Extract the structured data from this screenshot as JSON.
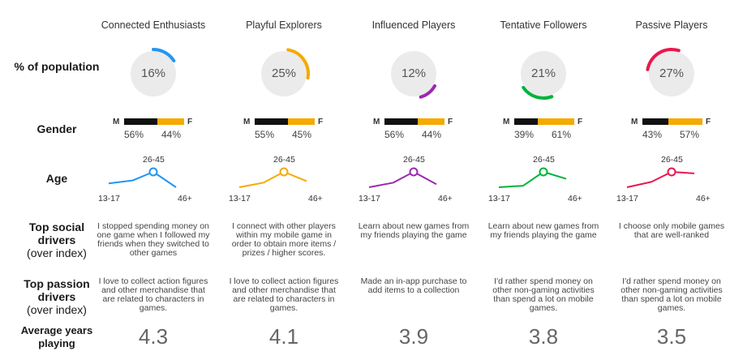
{
  "row_labels": {
    "population": "% of population",
    "gender": "Gender",
    "age": "Age",
    "social_title": "Top social drivers",
    "social_sub": "(over index)",
    "passion_title": "Top passion drivers",
    "passion_sub": "(over index)",
    "years": "Average years playing"
  },
  "gender_letters": {
    "m": "M",
    "f": "F"
  },
  "age_axis": {
    "low": "13-17",
    "mid": "26-45",
    "high": "46+"
  },
  "colors": {
    "male_bar": "#111111",
    "female_bar": "#f5a900",
    "circle_bg": "#ebebeb",
    "age_trend_stroke_width": "2"
  },
  "chart_data": {
    "type": "table",
    "segments": [
      {
        "name": "Connected Enthusiasts",
        "color": "#2196f3",
        "population_pct": 16,
        "population_label": "16%",
        "male_pct": 56,
        "male_label": "56%",
        "female_pct": 44,
        "female_label": "44%",
        "age_index": [
          0.25,
          0.45,
          1.0,
          0.0
        ],
        "social_driver": "I stopped spending money on one game when I followed my friends when they switched to other games",
        "passion_driver": "I love to collect action figures and other merchandise that are related to characters in games.",
        "avg_years": 4.3,
        "avg_years_label": "4.3"
      },
      {
        "name": "Playful Explorers",
        "color": "#f5a900",
        "population_pct": 25,
        "population_label": "25%",
        "male_pct": 55,
        "male_label": "55%",
        "female_pct": 45,
        "female_label": "45%",
        "age_index": [
          0.0,
          0.3,
          1.0,
          0.4
        ],
        "social_driver": "I connect with other players within my mobile game in order to obtain more items / prizes / higher scores.",
        "passion_driver": "I love to collect action figures and other merchandise that are related to characters in games.",
        "avg_years": 4.1,
        "avg_years_label": "4.1"
      },
      {
        "name": "Influenced Players",
        "color": "#9c27b0",
        "population_pct": 12,
        "population_label": "12%",
        "male_pct": 56,
        "male_label": "56%",
        "female_pct": 44,
        "female_label": "44%",
        "age_index": [
          0.0,
          0.3,
          1.0,
          0.2
        ],
        "social_driver": "Learn about new games from my friends playing the game",
        "passion_driver": "Made an in-app purchase to add items to a collection",
        "avg_years": 3.9,
        "avg_years_label": "3.9"
      },
      {
        "name": "Tentative Followers",
        "color": "#00b33c",
        "population_pct": 21,
        "population_label": "21%",
        "male_pct": 39,
        "male_label": "39%",
        "female_pct": 61,
        "female_label": "61%",
        "age_index": [
          0.0,
          0.1,
          1.0,
          0.55
        ],
        "social_driver": "Learn about new games from my friends playing the game",
        "passion_driver": "I'd rather spend money on other non-gaming activities than spend a lot on mobile games.",
        "avg_years": 3.8,
        "avg_years_label": "3.8"
      },
      {
        "name": "Passive Players",
        "color": "#e8174f",
        "population_pct": 27,
        "population_label": "27%",
        "male_pct": 43,
        "male_label": "43%",
        "female_pct": 57,
        "female_label": "57%",
        "age_index": [
          0.0,
          0.35,
          1.0,
          0.9
        ],
        "social_driver": "I choose only mobile games that are well-ranked",
        "passion_driver": "I'd rather spend money on other non-gaming activities than spend a lot on mobile games.",
        "avg_years": 3.5,
        "avg_years_label": "3.5"
      }
    ]
  }
}
